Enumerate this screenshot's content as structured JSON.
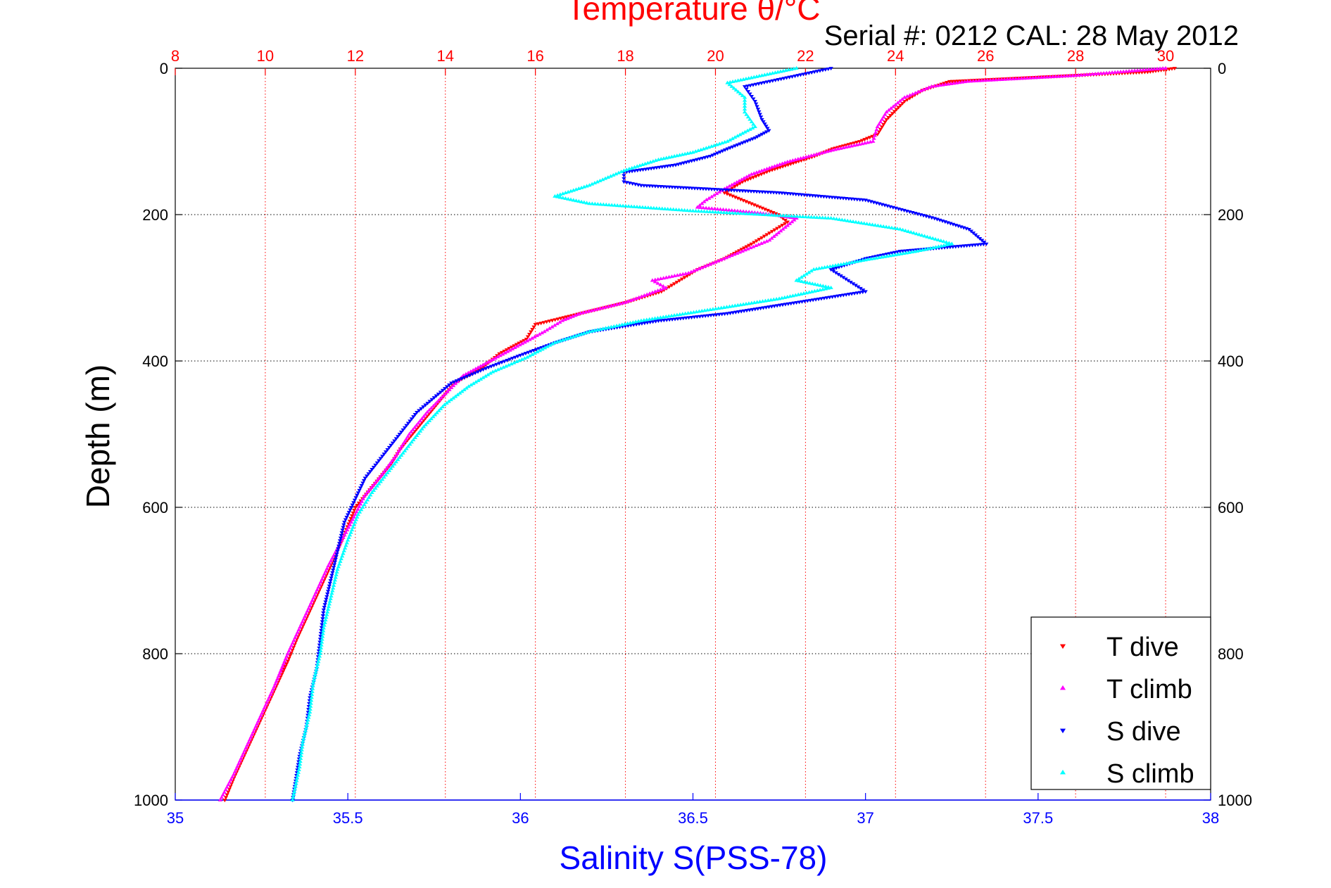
{
  "chart_data": {
    "type": "scatter",
    "title": "Temperature θ/°C",
    "subtitle": "Serial #: 0212  CAL: 28 May 2012",
    "ylabel": "Depth (m)",
    "xlabel": "Salinity S(PSS-78)",
    "ylim": [
      1000,
      0
    ],
    "y_ticks": [
      "0",
      "200",
      "400",
      "600",
      "800",
      "1000"
    ],
    "y_tick_values": [
      0,
      200,
      400,
      600,
      800,
      1000
    ],
    "x_bottom": {
      "label": "Salinity S(PSS-78)",
      "range": [
        35,
        38
      ],
      "ticks": [
        "35",
        "35.5",
        "36",
        "36.5",
        "37",
        "37.5",
        "38"
      ],
      "tick_values": [
        35,
        35.5,
        36,
        36.5,
        37,
        37.5,
        38
      ],
      "color": "#0000ff"
    },
    "x_top": {
      "label": "Temperature θ/°C",
      "range": [
        8,
        31
      ],
      "ticks": [
        "8",
        "10",
        "12",
        "14",
        "16",
        "18",
        "20",
        "22",
        "24",
        "26",
        "28",
        "30"
      ],
      "tick_values": [
        8,
        10,
        12,
        14,
        16,
        18,
        20,
        22,
        24,
        26,
        28,
        30
      ],
      "color": "#ff0000"
    },
    "grid": true,
    "legend_position": "bottom-right",
    "series": [
      {
        "name": "T dive",
        "axis": "temperature",
        "color": "#ff0000",
        "marker": "triangle-down",
        "points": [
          [
            30.2,
            0
          ],
          [
            29.6,
            5
          ],
          [
            27.2,
            12
          ],
          [
            25.2,
            18
          ],
          [
            24.6,
            30
          ],
          [
            24.2,
            45
          ],
          [
            23.8,
            70
          ],
          [
            23.6,
            90
          ],
          [
            23.2,
            100
          ],
          [
            22.6,
            110
          ],
          [
            22.2,
            120
          ],
          [
            21.2,
            140
          ],
          [
            20.6,
            155
          ],
          [
            20.2,
            170
          ],
          [
            20.8,
            185
          ],
          [
            21.4,
            200
          ],
          [
            21.6,
            210
          ],
          [
            21.2,
            225
          ],
          [
            20.8,
            240
          ],
          [
            20.2,
            260
          ],
          [
            19.6,
            275
          ],
          [
            19.2,
            290
          ],
          [
            18.8,
            305
          ],
          [
            18.0,
            320
          ],
          [
            17.0,
            335
          ],
          [
            16.0,
            350
          ],
          [
            15.8,
            370
          ],
          [
            15.2,
            390
          ],
          [
            14.8,
            410
          ],
          [
            14.2,
            430
          ],
          [
            13.8,
            460
          ],
          [
            13.4,
            490
          ],
          [
            13.0,
            520
          ],
          [
            12.8,
            540
          ],
          [
            12.4,
            570
          ],
          [
            12.0,
            600
          ],
          [
            11.8,
            630
          ],
          [
            11.6,
            660
          ],
          [
            11.3,
            700
          ],
          [
            11.0,
            740
          ],
          [
            10.7,
            780
          ],
          [
            10.5,
            810
          ],
          [
            10.2,
            850
          ],
          [
            9.9,
            890
          ],
          [
            9.6,
            930
          ],
          [
            9.3,
            970
          ],
          [
            9.1,
            1000
          ]
        ]
      },
      {
        "name": "T climb",
        "axis": "temperature",
        "color": "#ff00ff",
        "marker": "triangle-up",
        "points": [
          [
            30.0,
            0
          ],
          [
            28.0,
            10
          ],
          [
            25.6,
            18
          ],
          [
            24.8,
            25
          ],
          [
            24.2,
            40
          ],
          [
            23.8,
            60
          ],
          [
            23.6,
            80
          ],
          [
            23.5,
            100
          ],
          [
            22.6,
            112
          ],
          [
            21.6,
            128
          ],
          [
            20.8,
            145
          ],
          [
            20.2,
            165
          ],
          [
            19.8,
            180
          ],
          [
            19.6,
            190
          ],
          [
            21.0,
            198
          ],
          [
            21.8,
            205
          ],
          [
            21.6,
            215
          ],
          [
            21.2,
            235
          ],
          [
            20.6,
            250
          ],
          [
            20.0,
            265
          ],
          [
            19.4,
            280
          ],
          [
            18.6,
            290
          ],
          [
            18.9,
            300
          ],
          [
            18.0,
            320
          ],
          [
            17.0,
            335
          ],
          [
            16.6,
            345
          ],
          [
            16.2,
            360
          ],
          [
            15.6,
            380
          ],
          [
            15.0,
            400
          ],
          [
            14.4,
            420
          ],
          [
            14.0,
            445
          ],
          [
            13.6,
            470
          ],
          [
            13.2,
            500
          ],
          [
            12.9,
            530
          ],
          [
            12.6,
            555
          ],
          [
            12.2,
            585
          ],
          [
            12.0,
            610
          ],
          [
            11.7,
            645
          ],
          [
            11.4,
            680
          ],
          [
            11.1,
            720
          ],
          [
            10.8,
            760
          ],
          [
            10.5,
            800
          ],
          [
            10.2,
            845
          ],
          [
            9.9,
            885
          ],
          [
            9.6,
            925
          ],
          [
            9.3,
            965
          ],
          [
            9.0,
            1000
          ]
        ]
      },
      {
        "name": "S dive",
        "axis": "salinity",
        "color": "#0000ff",
        "marker": "triangle-down",
        "points": [
          [
            36.9,
            0
          ],
          [
            36.82,
            8
          ],
          [
            36.65,
            25
          ],
          [
            36.68,
            45
          ],
          [
            36.7,
            70
          ],
          [
            36.72,
            85
          ],
          [
            36.68,
            95
          ],
          [
            36.6,
            110
          ],
          [
            36.55,
            120
          ],
          [
            36.45,
            132
          ],
          [
            36.3,
            142
          ],
          [
            36.3,
            155
          ],
          [
            36.35,
            160
          ],
          [
            36.75,
            170
          ],
          [
            37.0,
            180
          ],
          [
            37.2,
            205
          ],
          [
            37.3,
            220
          ],
          [
            37.35,
            240
          ],
          [
            37.1,
            250
          ],
          [
            37.0,
            260
          ],
          [
            36.9,
            275
          ],
          [
            36.95,
            290
          ],
          [
            37.0,
            305
          ],
          [
            36.8,
            320
          ],
          [
            36.6,
            335
          ],
          [
            36.4,
            345
          ],
          [
            36.2,
            360
          ],
          [
            36.1,
            375
          ],
          [
            36.0,
            392
          ],
          [
            35.9,
            410
          ],
          [
            35.8,
            430
          ],
          [
            35.75,
            450
          ],
          [
            35.7,
            470
          ],
          [
            35.65,
            500
          ],
          [
            35.6,
            530
          ],
          [
            35.55,
            560
          ],
          [
            35.52,
            590
          ],
          [
            35.49,
            620
          ],
          [
            35.47,
            660
          ],
          [
            35.45,
            700
          ],
          [
            35.43,
            740
          ],
          [
            35.42,
            780
          ],
          [
            35.41,
            820
          ],
          [
            35.39,
            860
          ],
          [
            35.38,
            900
          ],
          [
            35.36,
            940
          ],
          [
            35.35,
            970
          ],
          [
            35.34,
            1000
          ]
        ]
      },
      {
        "name": "S climb",
        "axis": "salinity",
        "color": "#00ffff",
        "marker": "triangle-up",
        "points": [
          [
            36.8,
            0
          ],
          [
            36.7,
            10
          ],
          [
            36.6,
            20
          ],
          [
            36.65,
            40
          ],
          [
            36.65,
            60
          ],
          [
            36.68,
            80
          ],
          [
            36.6,
            100
          ],
          [
            36.5,
            115
          ],
          [
            36.4,
            125
          ],
          [
            36.3,
            140
          ],
          [
            36.2,
            160
          ],
          [
            36.1,
            175
          ],
          [
            36.2,
            185
          ],
          [
            36.5,
            195
          ],
          [
            36.9,
            205
          ],
          [
            37.1,
            220
          ],
          [
            37.25,
            240
          ],
          [
            37.15,
            250
          ],
          [
            37.0,
            262
          ],
          [
            36.85,
            275
          ],
          [
            36.8,
            290
          ],
          [
            36.9,
            300
          ],
          [
            36.75,
            315
          ],
          [
            36.55,
            330
          ],
          [
            36.35,
            345
          ],
          [
            36.2,
            360
          ],
          [
            36.1,
            375
          ],
          [
            36.02,
            395
          ],
          [
            35.92,
            415
          ],
          [
            35.85,
            435
          ],
          [
            35.78,
            460
          ],
          [
            35.72,
            490
          ],
          [
            35.67,
            520
          ],
          [
            35.62,
            550
          ],
          [
            35.57,
            580
          ],
          [
            35.53,
            610
          ],
          [
            35.5,
            645
          ],
          [
            35.47,
            685
          ],
          [
            35.45,
            725
          ],
          [
            35.43,
            765
          ],
          [
            35.42,
            800
          ],
          [
            35.4,
            840
          ],
          [
            35.39,
            880
          ],
          [
            35.37,
            920
          ],
          [
            35.36,
            955
          ],
          [
            35.34,
            1000
          ]
        ]
      }
    ]
  }
}
